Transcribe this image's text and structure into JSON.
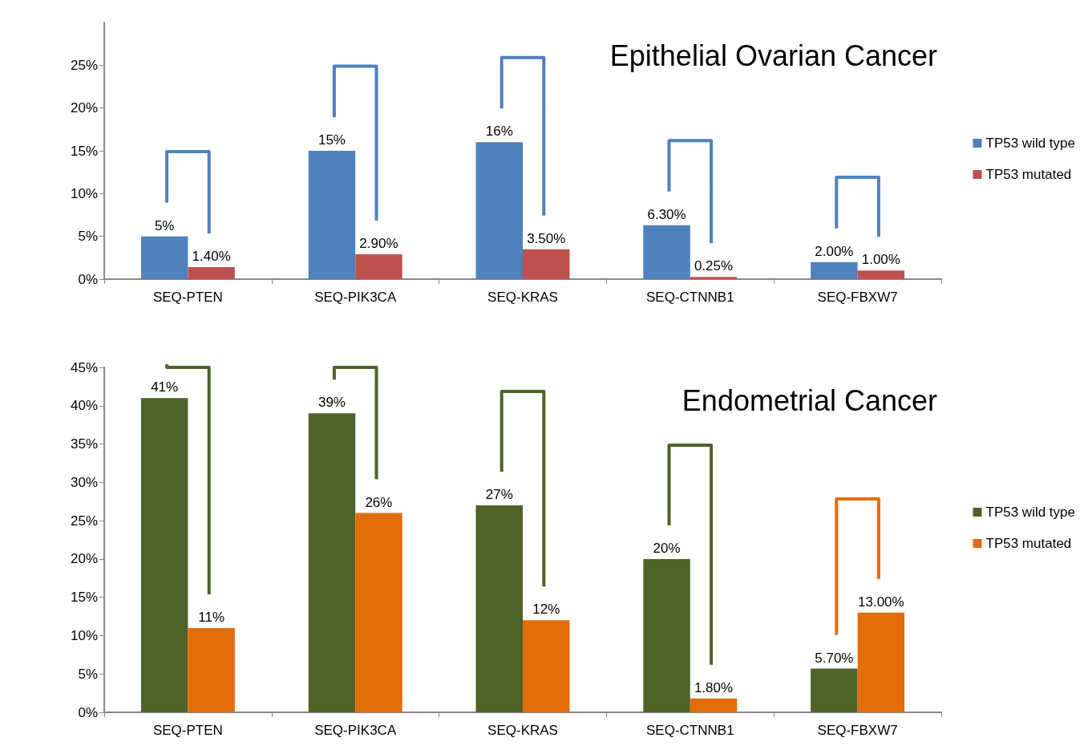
{
  "chart_data": [
    {
      "type": "bar",
      "title": "Epithelial Ovarian Cancer",
      "categories": [
        "SEQ-PTEN",
        "SEQ-PIK3CA",
        "SEQ-KRAS",
        "SEQ-CTNNB1",
        "SEQ-FBXW7"
      ],
      "series": [
        {
          "name": "TP53 wild type",
          "color": "#4f81bd",
          "values": [
            5,
            15,
            16,
            6.3,
            2
          ],
          "value_labels": [
            "5%",
            "15%",
            "16%",
            "6.30%",
            "2.00%"
          ]
        },
        {
          "name": "TP53 mutated",
          "color": "#c0504d",
          "values": [
            1.4,
            2.9,
            3.5,
            0.25,
            1
          ],
          "value_labels": [
            "1.40%",
            "2.90%",
            "3.50%",
            "0.25%",
            "1.00%"
          ]
        }
      ],
      "ylim": [
        0,
        30
      ],
      "yticks": [
        {
          "value": 0,
          "label": "0%"
        },
        {
          "value": 5,
          "label": "5%"
        },
        {
          "value": 10,
          "label": "10%"
        },
        {
          "value": 15,
          "label": "15%"
        },
        {
          "value": 20,
          "label": "20%"
        },
        {
          "value": 25,
          "label": "25%"
        }
      ],
      "grid": false,
      "legend": "right"
    },
    {
      "type": "bar",
      "title": "Endometrial Cancer",
      "categories": [
        "SEQ-PTEN",
        "SEQ-PIK3CA",
        "SEQ-KRAS",
        "SEQ-CTNNB1",
        "SEQ-FBXW7"
      ],
      "series": [
        {
          "name": "TP53 wild type",
          "color": "#4f6228",
          "values": [
            41,
            39,
            27,
            20,
            5.7
          ],
          "value_labels": [
            "41%",
            "39%",
            "27%",
            "20%",
            "5.70%"
          ]
        },
        {
          "name": "TP53 mutated",
          "color": "#e46c0a",
          "values": [
            11,
            26,
            12,
            1.8,
            13
          ],
          "value_labels": [
            "11%",
            "26%",
            "12%",
            "1.80%",
            "13.00%"
          ]
        }
      ],
      "ylim": [
        0,
        45
      ],
      "yticks": [
        {
          "value": 0,
          "label": "0%"
        },
        {
          "value": 5,
          "label": "5%"
        },
        {
          "value": 10,
          "label": "10%"
        },
        {
          "value": 15,
          "label": "15%"
        },
        {
          "value": 20,
          "label": "20%"
        },
        {
          "value": 25,
          "label": "25%"
        },
        {
          "value": 30,
          "label": "30%"
        },
        {
          "value": 35,
          "label": "35%"
        },
        {
          "value": 40,
          "label": "40%"
        },
        {
          "value": 45,
          "label": "45%"
        }
      ],
      "grid": false,
      "legend": "right"
    }
  ]
}
